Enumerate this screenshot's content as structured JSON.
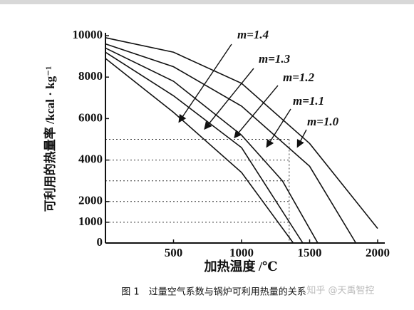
{
  "chart_data": {
    "type": "line",
    "caption": "图 1　过量空气系数与锅炉可利用热量的关系",
    "watermark": "知乎 @天禹智控",
    "x_label": "加热温度 /℃",
    "y_label": "可利用的热量率 /kcal · kg⁻¹",
    "xlim": [
      0,
      2000
    ],
    "xticks": [
      500,
      1000,
      1500,
      2000
    ],
    "ylim": [
      0,
      10000
    ],
    "yticks": [
      0,
      1000,
      2000,
      4000,
      6000,
      8000,
      10000
    ],
    "reference_lines": {
      "y": [
        1000,
        2000,
        3000,
        4000,
        5000
      ],
      "x": 1350
    },
    "series": [
      {
        "name": "m=1.4",
        "color": "#111111",
        "x": [
          0,
          500,
          1000,
          1380
        ],
        "values": [
          8900,
          6300,
          3400,
          0
        ]
      },
      {
        "name": "m=1.3",
        "color": "#111111",
        "x": [
          0,
          500,
          1000,
          1450
        ],
        "values": [
          9200,
          7100,
          4600,
          0
        ]
      },
      {
        "name": "m=1.2",
        "color": "#111111",
        "x": [
          0,
          500,
          1000,
          1300,
          1560
        ],
        "values": [
          9400,
          7800,
          5200,
          3000,
          0
        ]
      },
      {
        "name": "m=1.1",
        "color": "#111111",
        "x": [
          0,
          500,
          1000,
          1500,
          1840
        ],
        "values": [
          9600,
          8500,
          6600,
          3700,
          0
        ]
      },
      {
        "name": "m=1.0",
        "color": "#111111",
        "x": [
          0,
          500,
          1000,
          1500,
          2000
        ],
        "values": [
          9900,
          9200,
          7700,
          4800,
          700
        ]
      }
    ]
  }
}
